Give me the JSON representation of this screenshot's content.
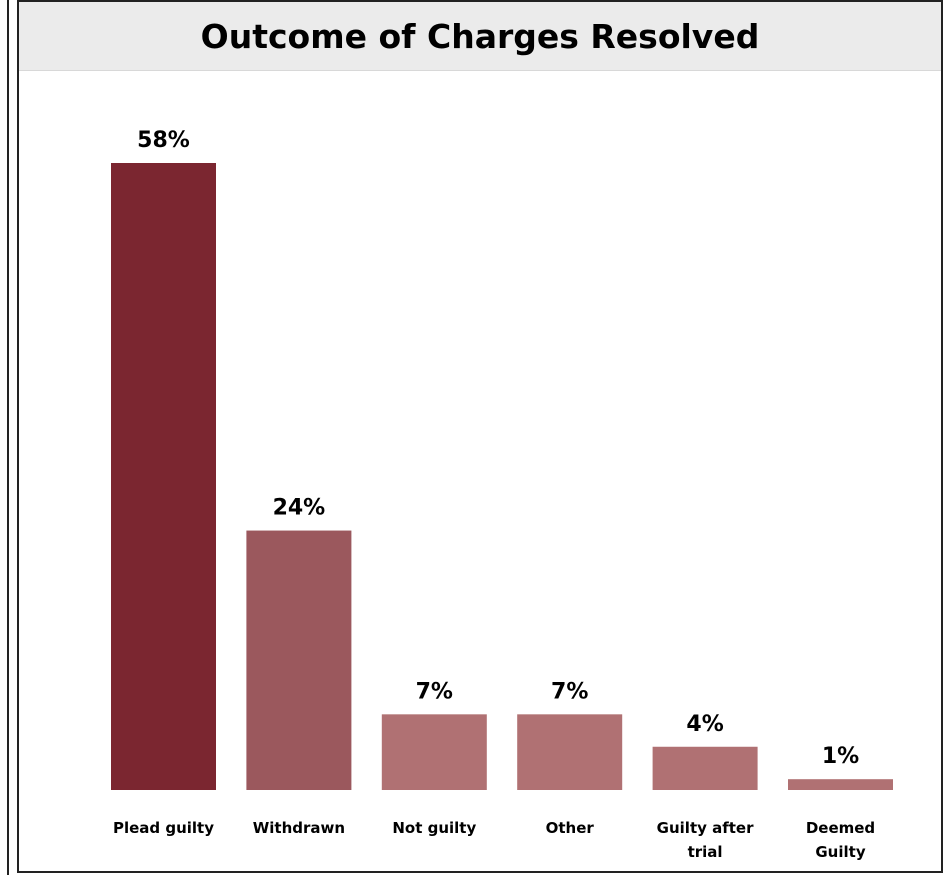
{
  "chart_data": {
    "type": "bar",
    "title": "Outcome of Charges Resolved",
    "xlabel": "",
    "ylabel": "",
    "ylim": [
      0,
      60
    ],
    "grid": false,
    "legend": "none",
    "categories": [
      [
        "Plead guilty"
      ],
      [
        "Withdrawn"
      ],
      [
        "Not guilty"
      ],
      [
        "Other"
      ],
      [
        "Guilty after",
        "trial"
      ],
      [
        "Deemed",
        "Guilty"
      ]
    ],
    "values": [
      58,
      24,
      7,
      7,
      4,
      1
    ],
    "data_labels": [
      "58%",
      "24%",
      "7%",
      "7%",
      "4%",
      "1%"
    ],
    "colors": [
      "#7b2630",
      "#9b585d",
      "#b07173",
      "#b07173",
      "#b07173",
      "#b07173"
    ]
  }
}
